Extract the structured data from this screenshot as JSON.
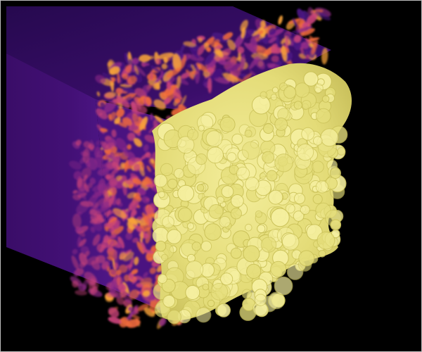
{
  "figure": {
    "subject": "turbulent-flame-volume-render",
    "colors": {
      "background": "#000000",
      "border": "#bdbdbd",
      "violet_dark": "#2a0a55",
      "violet": "#3d0d6e",
      "violet_mid": "#4a1582",
      "magenta": "#8f2a88",
      "pink": "#c8437a",
      "orange": "#f06a3c",
      "amber": "#f9a33a",
      "yellow_dark": "#c9c057",
      "yellow": "#e6df7c",
      "yellow_light": "#f6f0a0"
    }
  }
}
